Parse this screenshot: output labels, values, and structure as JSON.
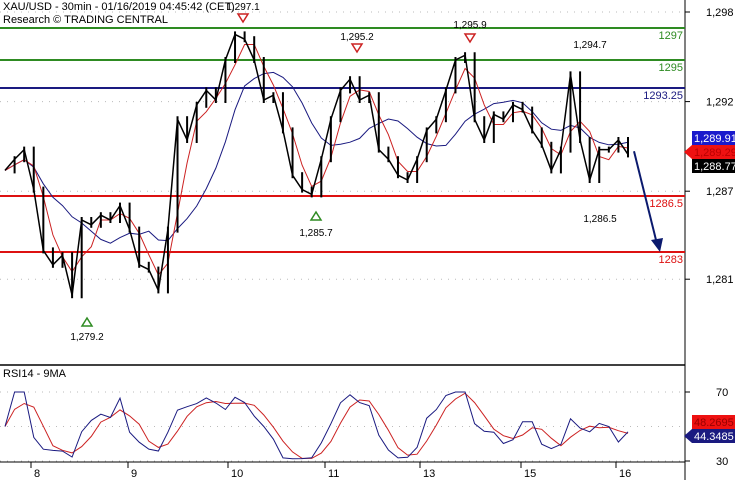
{
  "header": {
    "title": "XAU/USD - 30min - 01/16/2019 04:45:42 (CET)",
    "credit": "Research © TRADING CENTRAL"
  },
  "rsi_panel": {
    "title": "RSI14 - 9MA",
    "rsi_value": "44.3485",
    "ma_value": "48.2695"
  },
  "price_tags": {
    "blue": "1,289.91",
    "red": "1,289.29",
    "black": "1,288.77"
  },
  "colors": {
    "resistance": "#2e8b22",
    "pivot": "#1a1a80",
    "support": "#dd1111",
    "price": "#000000",
    "fast_ma": "#cc2222",
    "slow_ma": "#1a1a80",
    "forecast_arrow": "#0b1a6e"
  },
  "chart_data": {
    "type": "line",
    "title": "XAU/USD - 30min",
    "y_axis_ticks": [
      "1,298",
      "1,292",
      "1,287",
      "1,281"
    ],
    "y_tick_values": [
      1298,
      1292.4,
      1286.8,
      1281.3
    ],
    "x_axis_ticks": [
      "8",
      "9",
      "10",
      "11",
      "13",
      "15",
      "16"
    ],
    "closes": [
      1288.1,
      1288.8,
      1289.4,
      1286.9,
      1283.1,
      1282.2,
      1282.8,
      1280.3,
      1285.0,
      1284.7,
      1285.3,
      1285.0,
      1285.9,
      1284.4,
      1282.2,
      1281.9,
      1280.6,
      1284.4,
      1291.3,
      1290.0,
      1292.2,
      1293.1,
      1292.5,
      1295.0,
      1296.6,
      1296.3,
      1295.0,
      1292.5,
      1292.8,
      1290.6,
      1287.8,
      1286.9,
      1286.6,
      1288.8,
      1291.3,
      1293.1,
      1293.8,
      1292.5,
      1292.8,
      1289.4,
      1288.8,
      1287.8,
      1287.5,
      1288.8,
      1290.6,
      1291.3,
      1293.1,
      1295.0,
      1295.3,
      1291.3,
      1290.0,
      1291.6,
      1291.3,
      1292.2,
      1291.9,
      1290.6,
      1289.7,
      1288.1,
      1289.4,
      1294.1,
      1290.0,
      1287.5,
      1289.4,
      1289.4,
      1290.0,
      1289.1
    ],
    "levels": [
      {
        "value": 1297,
        "label": "1297",
        "kind": "resistance"
      },
      {
        "value": 1295,
        "label": "1295",
        "kind": "resistance"
      },
      {
        "value": 1293.25,
        "label": "1293.25",
        "kind": "pivot"
      },
      {
        "value": 1286.5,
        "label": "1286.5",
        "kind": "support"
      },
      {
        "value": 1283,
        "label": "1283",
        "kind": "support"
      }
    ],
    "annotations": [
      {
        "label": "1,297.1",
        "value": 1297.1,
        "marker": "down"
      },
      {
        "label": "1,295.2",
        "value": 1295.2,
        "marker": "down"
      },
      {
        "label": "1,295.9",
        "value": 1295.9,
        "marker": "down"
      },
      {
        "label": "1,294.7",
        "value": 1294.7,
        "marker": "none"
      },
      {
        "label": "1,285.7",
        "value": 1285.7,
        "marker": "up"
      },
      {
        "label": "1,279.2",
        "value": 1279.2,
        "marker": "up"
      },
      {
        "label": "1,286.5",
        "value": 1286.5,
        "marker": "none"
      }
    ],
    "forecast": {
      "from": 1289.3,
      "to": 1283
    },
    "rsi": {
      "ylim": [
        25,
        85
      ],
      "ticks": [
        "70",
        "30"
      ],
      "tick_values": [
        70,
        30
      ]
    },
    "grid": true
  }
}
